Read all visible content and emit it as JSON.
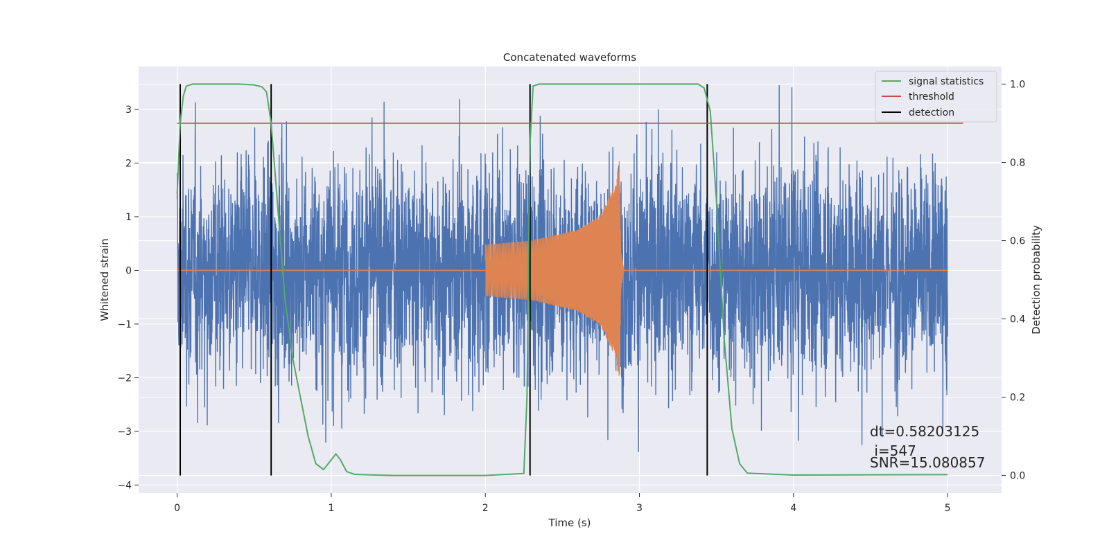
{
  "chart_data": {
    "type": "line",
    "title": "Concatenated waveforms",
    "xlabel": "Time (s)",
    "ylabel_left": "Whitened strain",
    "ylabel_right": "Detection probability",
    "xlim": [
      -0.25,
      5.35
    ],
    "ylim_left": [
      -4.15,
      3.8
    ],
    "ylim_right": [
      -0.045,
      1.045
    ],
    "x_ticks": [
      0,
      1,
      2,
      3,
      4,
      5
    ],
    "y_ticks_left": [
      -4,
      -3,
      -2,
      -1,
      0,
      1,
      2,
      3
    ],
    "y_ticks_right": [
      0.0,
      0.2,
      0.4,
      0.6,
      0.8,
      1.0
    ],
    "grid": true,
    "legend_position": "top-right",
    "series": [
      {
        "name": "",
        "kind": "noise",
        "color": "#4c72b0",
        "x_range": [
          0,
          5
        ],
        "typical_amplitude": 2.0,
        "peak_max": 3.45,
        "peak_min": -3.75
      },
      {
        "name": "",
        "kind": "chirp",
        "color": "#dd8452",
        "x_range": [
          2.0,
          2.9
        ],
        "envelope": [
          {
            "t": 2.0,
            "a": 0.48
          },
          {
            "t": 2.3,
            "a": 0.56
          },
          {
            "t": 2.6,
            "a": 0.76
          },
          {
            "t": 2.75,
            "a": 1.05
          },
          {
            "t": 2.84,
            "a": 1.6
          },
          {
            "t": 2.87,
            "a": 2.05
          },
          {
            "t": 2.88,
            "a": 0.35
          },
          {
            "t": 2.9,
            "a": 0.0
          }
        ]
      },
      {
        "name": "signal statistics",
        "color": "#55a868",
        "x": [
          0.0,
          0.02,
          0.04,
          0.06,
          0.1,
          0.2,
          0.4,
          0.5,
          0.55,
          0.58,
          0.61,
          0.65,
          0.7,
          0.75,
          0.8,
          0.85,
          0.9,
          0.95,
          1.0,
          1.03,
          1.06,
          1.1,
          1.15,
          1.2,
          1.4,
          2.0,
          2.25,
          2.27,
          2.29,
          2.31,
          2.35,
          2.5,
          3.0,
          3.38,
          3.42,
          3.46,
          3.5,
          3.55,
          3.6,
          3.65,
          3.7,
          4.0,
          5.0
        ],
        "y": [
          0.72,
          0.9,
          0.97,
          0.995,
          1.0,
          1.0,
          1.0,
          0.998,
          0.993,
          0.98,
          0.9,
          0.7,
          0.45,
          0.3,
          0.2,
          0.1,
          0.03,
          0.015,
          0.04,
          0.055,
          0.04,
          0.01,
          0.003,
          0.002,
          0.0,
          0.0,
          0.005,
          0.2,
          0.85,
          0.995,
          1.0,
          1.0,
          1.0,
          1.0,
          0.99,
          0.93,
          0.7,
          0.35,
          0.12,
          0.03,
          0.006,
          0.001,
          0.002
        ]
      },
      {
        "name": "threshold",
        "color": "#c44e52",
        "x": [
          0.0,
          5.1
        ],
        "y": [
          0.9,
          0.9
        ]
      },
      {
        "name": "detection",
        "color": "#000000",
        "x": [
          0.02,
          0.61,
          2.29,
          3.44
        ],
        "y_range": [
          0.0,
          1.0
        ]
      }
    ],
    "annotations": {
      "dt": "dt=0.58203125",
      "i": " i=547",
      "snr": "SNR=15.080857"
    }
  }
}
